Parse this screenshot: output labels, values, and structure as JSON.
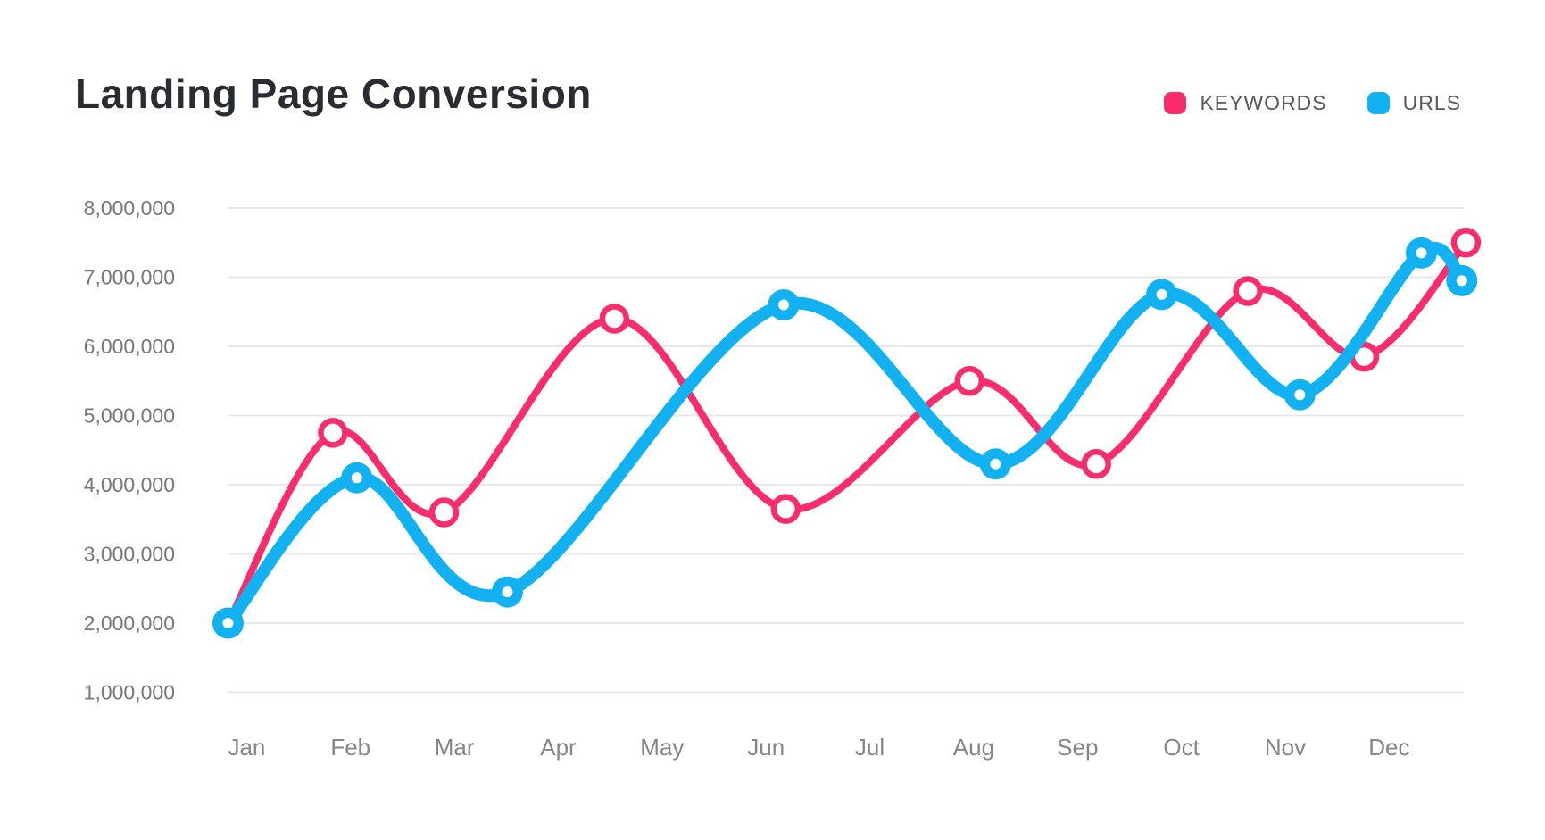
{
  "title": "Landing Page Conversion",
  "legend": [
    {
      "label": "KEYWORDS",
      "color": "#FA2D6C"
    },
    {
      "label": "URLS",
      "color": "#12B2F2"
    }
  ],
  "chart_data": {
    "type": "line",
    "subtype": "smooth-spline",
    "title": "Landing Page Conversion",
    "xlabel": "",
    "ylabel": "",
    "categories": [
      "Jan",
      "Feb",
      "Mar",
      "Apr",
      "May",
      "Jun",
      "Jul",
      "Aug",
      "Sep",
      "Oct",
      "Nov",
      "Dec"
    ],
    "y_ticks": [
      {
        "value": 8000000,
        "label": "8,000,000"
      },
      {
        "value": 7000000,
        "label": "7,000,000"
      },
      {
        "value": 6000000,
        "label": "6,000,000"
      },
      {
        "value": 5000000,
        "label": "5,000,000"
      },
      {
        "value": 4000000,
        "label": "4,000,000"
      },
      {
        "value": 3000000,
        "label": "3,000,000"
      },
      {
        "value": 2000000,
        "label": "2,000,000"
      },
      {
        "value": 1000000,
        "label": "1,000,000"
      }
    ],
    "ylim": [
      1000000,
      8000000
    ],
    "grid": "horizontal-only",
    "gridline_color": "#e8e8eb",
    "legend_position": "top-right",
    "series": [
      {
        "name": "KEYWORDS",
        "color": "#FA2D6C",
        "marker": "hollow-circle",
        "line_width": 8,
        "points": [
          {
            "month_pos": -0.18,
            "value": 2000000
          },
          {
            "month_pos": 0.83,
            "value": 4750000
          },
          {
            "month_pos": 1.9,
            "value": 3600000
          },
          {
            "month_pos": 3.54,
            "value": 6400000
          },
          {
            "month_pos": 5.19,
            "value": 3650000
          },
          {
            "month_pos": 6.96,
            "value": 5500000
          },
          {
            "month_pos": 8.18,
            "value": 4300000
          },
          {
            "month_pos": 9.64,
            "value": 6800000
          },
          {
            "month_pos": 10.76,
            "value": 5850000
          },
          {
            "month_pos": 11.74,
            "value": 7500000
          }
        ]
      },
      {
        "name": "URLS",
        "color": "#12B2F2",
        "marker": "filled-circle-white-dot",
        "line_width": 14,
        "points": [
          {
            "month_pos": -0.18,
            "value": 2000000
          },
          {
            "month_pos": 1.06,
            "value": 4100000
          },
          {
            "month_pos": 2.51,
            "value": 2450000
          },
          {
            "month_pos": 5.17,
            "value": 6600000
          },
          {
            "month_pos": 7.21,
            "value": 4300000
          },
          {
            "month_pos": 8.81,
            "value": 6750000
          },
          {
            "month_pos": 10.14,
            "value": 5300000
          },
          {
            "month_pos": 11.31,
            "value": 7350000
          },
          {
            "month_pos": 11.7,
            "value": 6950000
          }
        ]
      }
    ]
  }
}
